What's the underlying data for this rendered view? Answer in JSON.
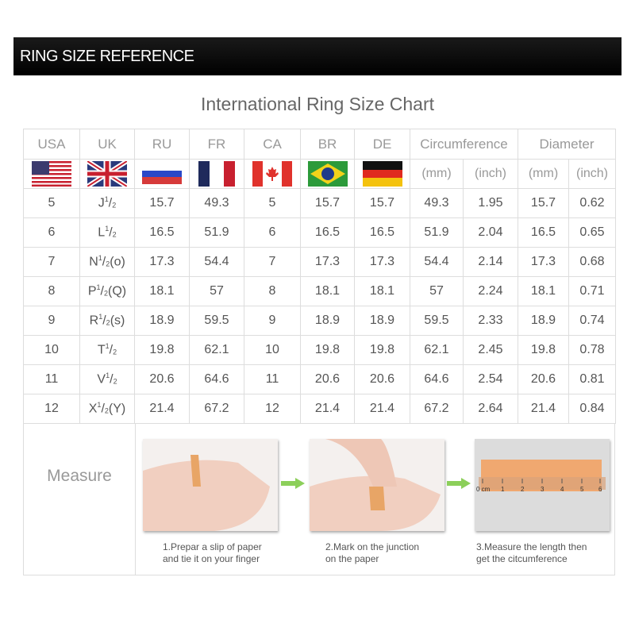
{
  "banner": {
    "title": "RING SIZE REFERENCE"
  },
  "chart_title": "International Ring Size Chart",
  "table": {
    "headers": [
      "USA",
      "UK",
      "RU",
      "FR",
      "CA",
      "BR",
      "DE",
      "Circumference",
      "Diameter"
    ],
    "units": [
      "(mm)",
      "(inch)",
      "(mm)",
      "(inch)"
    ],
    "flags": [
      "us-flag-icon",
      "uk-flag-icon",
      "russia-flag-icon",
      "france-flag-icon",
      "canada-flag-icon",
      "brazil-flag-icon",
      "germany-flag-icon"
    ],
    "rows": [
      {
        "usa": "5",
        "uk_letter": "J",
        "uk_suffix": "",
        "ru": "15.7",
        "fr": "49.3",
        "ca": "5",
        "br": "15.7",
        "de": "15.7",
        "circ_mm": "49.3",
        "circ_in": "1.95",
        "dia_mm": "15.7",
        "dia_in": "0.62"
      },
      {
        "usa": "6",
        "uk_letter": "L",
        "uk_suffix": "",
        "ru": "16.5",
        "fr": "51.9",
        "ca": "6",
        "br": "16.5",
        "de": "16.5",
        "circ_mm": "51.9",
        "circ_in": "2.04",
        "dia_mm": "16.5",
        "dia_in": "0.65"
      },
      {
        "usa": "7",
        "uk_letter": "N",
        "uk_suffix": "(o)",
        "ru": "17.3",
        "fr": "54.4",
        "ca": "7",
        "br": "17.3",
        "de": "17.3",
        "circ_mm": "54.4",
        "circ_in": "2.14",
        "dia_mm": "17.3",
        "dia_in": "0.68"
      },
      {
        "usa": "8",
        "uk_letter": "P",
        "uk_suffix": "(Q)",
        "ru": "18.1",
        "fr": "57",
        "ca": "8",
        "br": "18.1",
        "de": "18.1",
        "circ_mm": "57",
        "circ_in": "2.24",
        "dia_mm": "18.1",
        "dia_in": "0.71"
      },
      {
        "usa": "9",
        "uk_letter": "R",
        "uk_suffix": "(s)",
        "ru": "18.9",
        "fr": "59.5",
        "ca": "9",
        "br": "18.9",
        "de": "18.9",
        "circ_mm": "59.5",
        "circ_in": "2.33",
        "dia_mm": "18.9",
        "dia_in": "0.74"
      },
      {
        "usa": "10",
        "uk_letter": "T",
        "uk_suffix": "",
        "ru": "19.8",
        "fr": "62.1",
        "ca": "10",
        "br": "19.8",
        "de": "19.8",
        "circ_mm": "62.1",
        "circ_in": "2.45",
        "dia_mm": "19.8",
        "dia_in": "0.78"
      },
      {
        "usa": "11",
        "uk_letter": "V",
        "uk_suffix": "",
        "ru": "20.6",
        "fr": "64.6",
        "ca": "11",
        "br": "20.6",
        "de": "20.6",
        "circ_mm": "64.6",
        "circ_in": "2.54",
        "dia_mm": "20.6",
        "dia_in": "0.81"
      },
      {
        "usa": "12",
        "uk_letter": "X",
        "uk_suffix": "(Y)",
        "ru": "21.4",
        "fr": "67.2",
        "ca": "12",
        "br": "21.4",
        "de": "21.4",
        "circ_mm": "67.2",
        "circ_in": "2.64",
        "dia_mm": "21.4",
        "dia_in": "0.84"
      }
    ],
    "half_num": "1",
    "half_den": "2"
  },
  "measure": {
    "label": "Measure",
    "steps": [
      {
        "line1": "1.Prepar a slip of paper",
        "line2": "and tie it on your finger"
      },
      {
        "line1": "2.Mark on the junction",
        "line2": "on the paper"
      },
      {
        "line1": "3.Measure the length then",
        "line2": "get the citcumference"
      }
    ],
    "ruler_labels": [
      "0 cm",
      "1",
      "2",
      "3",
      "4",
      "5",
      "6"
    ],
    "arrow_color": "#8ccf5a"
  }
}
